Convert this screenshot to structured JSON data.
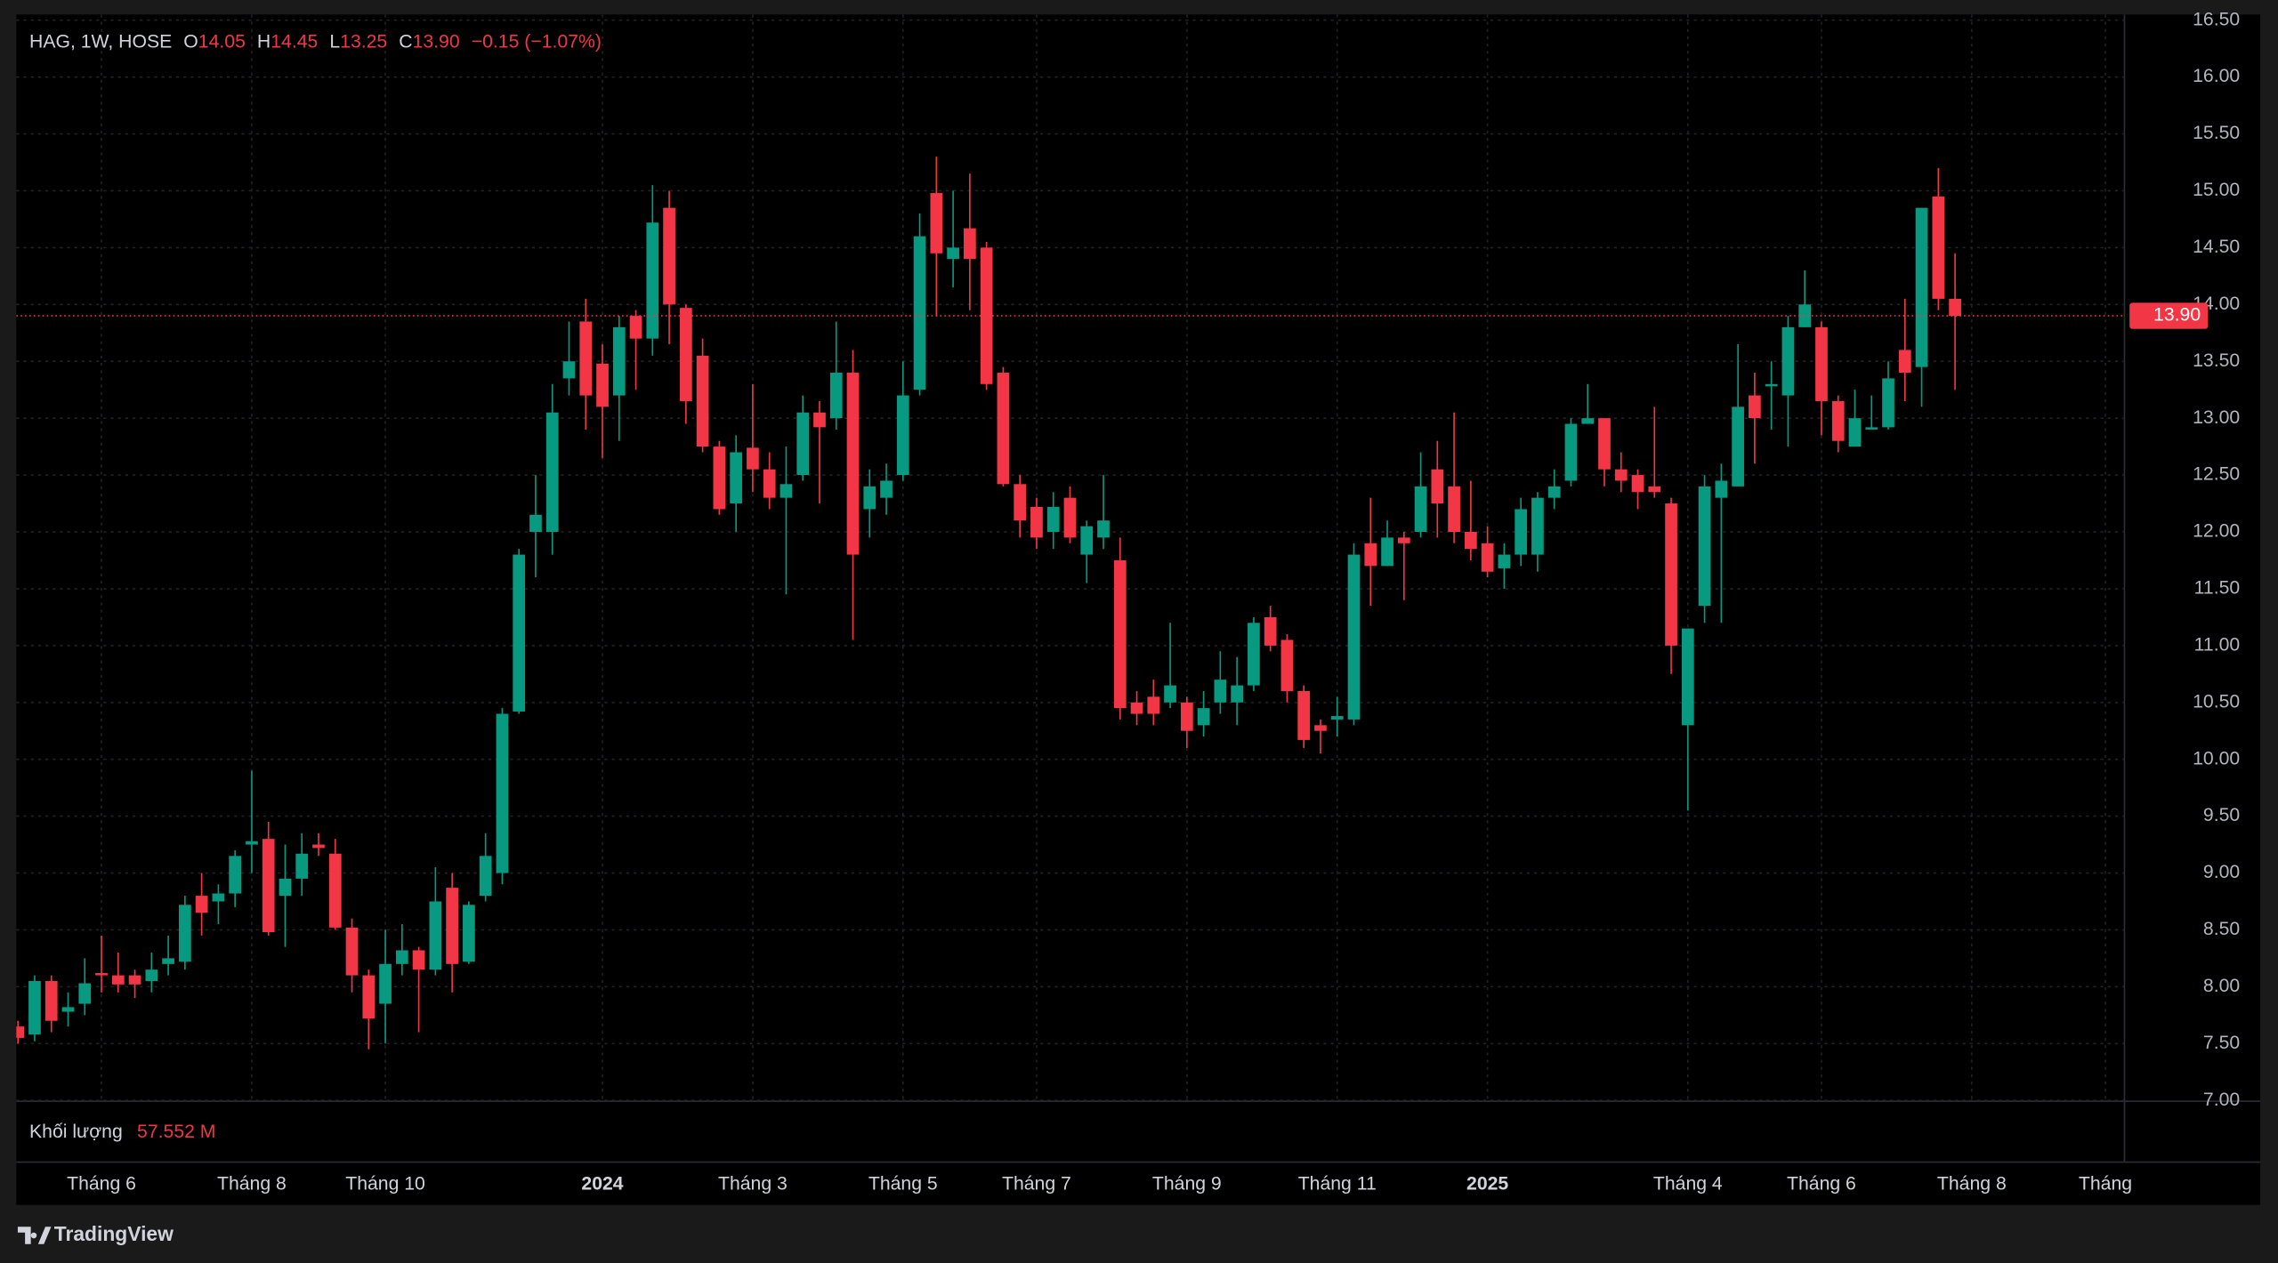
{
  "header": {
    "symbol": "HAG, 1W, HOSE",
    "open_label": "O",
    "open": "14.05",
    "high_label": "H",
    "high": "14.45",
    "low_label": "L",
    "low": "13.25",
    "close_label": "C",
    "close": "13.90",
    "change": "−0.15 (−1.07%)"
  },
  "volume_pane": {
    "label": "Khối lượng",
    "value": "57.552 M"
  },
  "brand": "TradingView",
  "chart_data": {
    "type": "candlestick",
    "up_color": "#089981",
    "down_color": "#f23645",
    "grid": true,
    "xlim": [
      -0.1,
      126.1
    ],
    "xticks": [
      {
        "value": 5,
        "label": "Tháng 6"
      },
      {
        "value": 14,
        "label": "Tháng 8"
      },
      {
        "value": 22,
        "label": "Tháng 10"
      },
      {
        "value": 35,
        "label": "2024"
      },
      {
        "value": 44,
        "label": "Tháng 3"
      },
      {
        "value": 53,
        "label": "Tháng 5"
      },
      {
        "value": 61,
        "label": "Tháng 7"
      },
      {
        "value": 70,
        "label": "Tháng 9"
      },
      {
        "value": 79,
        "label": "Tháng 11"
      },
      {
        "value": 88,
        "label": "2025"
      },
      {
        "value": 100,
        "label": "Tháng 4"
      },
      {
        "value": 108,
        "label": "Tháng 6"
      },
      {
        "value": 117,
        "label": "Tháng 8"
      },
      {
        "value": 125,
        "label": "Tháng"
      }
    ],
    "ylim": [
      7,
      16.55
    ],
    "yticks": [
      {
        "value": 7,
        "label": "7.00"
      },
      {
        "value": 7.5,
        "label": "7.50"
      },
      {
        "value": 8,
        "label": "8.00"
      },
      {
        "value": 8.5,
        "label": "8.50"
      },
      {
        "value": 9,
        "label": "9.00"
      },
      {
        "value": 9.5,
        "label": "9.50"
      },
      {
        "value": 10,
        "label": "10.00"
      },
      {
        "value": 10.5,
        "label": "10.50"
      },
      {
        "value": 11,
        "label": "11.00"
      },
      {
        "value": 11.5,
        "label": "11.50"
      },
      {
        "value": 12,
        "label": "12.00"
      },
      {
        "value": 12.5,
        "label": "12.50"
      },
      {
        "value": 13,
        "label": "13.00"
      },
      {
        "value": 13.5,
        "label": "13.50"
      },
      {
        "value": 14,
        "label": "14.00"
      },
      {
        "value": 14.5,
        "label": "14.50"
      },
      {
        "value": 15,
        "label": "15.00"
      },
      {
        "value": 15.5,
        "label": "15.50"
      },
      {
        "value": 16,
        "label": "16.00"
      },
      {
        "value": 16.5,
        "label": "16.50"
      }
    ],
    "last_price": {
      "value": 13.9,
      "label": "13.90"
    },
    "open": [
      7.65,
      7.58,
      8.05,
      7.78,
      7.85,
      8.12,
      8.1,
      8.1,
      8.05,
      8.2,
      8.22,
      8.8,
      8.75,
      8.82,
      9.25,
      9.3,
      8.8,
      8.95,
      9.25,
      9.17,
      8.52,
      8.1,
      7.85,
      8.2,
      8.32,
      8.15,
      8.87,
      8.22,
      8.8,
      9.0,
      10.42,
      12.0,
      12.0,
      13.35,
      13.85,
      13.48,
      13.2,
      13.9,
      13.7,
      14.85,
      13.97,
      13.55,
      12.75,
      12.25,
      12.74,
      12.55,
      12.3,
      12.5,
      13.05,
      13.0,
      13.4,
      12.2,
      12.3,
      12.5,
      13.25,
      14.98,
      14.4,
      14.67,
      14.5,
      13.4,
      12.42,
      12.22,
      12.0,
      12.3,
      11.8,
      11.95,
      11.75,
      10.5,
      10.55,
      10.5,
      10.5,
      10.3,
      10.5,
      10.5,
      10.65,
      11.25,
      11.05,
      10.6,
      10.3,
      10.35,
      10.35,
      11.9,
      11.7,
      11.95,
      12.0,
      12.55,
      12.4,
      12.0,
      11.9,
      11.68,
      11.8,
      11.8,
      12.3,
      12.45,
      12.95,
      13.0,
      12.55,
      12.5,
      12.4,
      12.25,
      10.3,
      11.35,
      12.3,
      12.4,
      13.2,
      13.28,
      13.2,
      13.8,
      13.8,
      13.15,
      12.75,
      12.9,
      12.92,
      13.6,
      13.45,
      14.95,
      14.05
    ],
    "high": [
      7.7,
      8.1,
      8.1,
      7.95,
      8.25,
      8.45,
      8.3,
      8.15,
      8.3,
      8.45,
      8.8,
      9.0,
      8.9,
      9.2,
      9.9,
      9.45,
      9.25,
      9.35,
      9.35,
      9.3,
      8.6,
      8.15,
      8.5,
      8.55,
      8.35,
      9.05,
      9.0,
      8.75,
      9.35,
      10.45,
      11.85,
      12.5,
      13.3,
      13.85,
      14.05,
      13.65,
      13.9,
      13.95,
      15.05,
      15.0,
      14.0,
      13.7,
      12.8,
      12.85,
      13.3,
      12.7,
      12.75,
      13.2,
      13.15,
      13.85,
      13.6,
      12.55,
      12.6,
      13.5,
      14.8,
      15.3,
      15.0,
      15.15,
      14.55,
      13.45,
      12.5,
      12.3,
      12.35,
      12.4,
      12.1,
      12.5,
      11.95,
      10.6,
      10.7,
      11.2,
      10.55,
      10.6,
      10.95,
      10.9,
      11.25,
      11.35,
      11.1,
      10.65,
      10.35,
      10.55,
      11.9,
      12.3,
      12.1,
      12.0,
      12.7,
      12.8,
      13.05,
      12.45,
      12.05,
      11.9,
      12.3,
      12.35,
      12.55,
      13.0,
      13.3,
      13.0,
      12.7,
      12.55,
      13.1,
      12.3,
      11.15,
      12.5,
      12.6,
      13.65,
      13.4,
      13.5,
      13.9,
      14.3,
      13.85,
      13.2,
      13.25,
      13.2,
      13.5,
      14.05,
      14.85,
      15.2,
      14.45
    ],
    "low": [
      7.5,
      7.52,
      7.6,
      7.65,
      7.75,
      7.95,
      7.95,
      7.9,
      7.95,
      8.1,
      8.15,
      8.45,
      8.55,
      8.7,
      9.0,
      8.45,
      8.35,
      8.8,
      9.15,
      8.5,
      7.95,
      7.45,
      7.5,
      8.1,
      7.6,
      8.1,
      7.95,
      8.2,
      8.75,
      8.9,
      10.4,
      11.6,
      11.8,
      13.2,
      12.9,
      12.65,
      12.8,
      13.25,
      13.55,
      13.65,
      12.95,
      12.7,
      12.15,
      12.0,
      12.35,
      12.2,
      11.45,
      12.45,
      12.25,
      12.9,
      11.05,
      11.95,
      12.15,
      12.45,
      13.2,
      13.9,
      14.15,
      13.95,
      13.25,
      12.4,
      11.95,
      11.85,
      11.85,
      11.9,
      11.55,
      11.85,
      10.35,
      10.3,
      10.3,
      10.45,
      10.1,
      10.2,
      10.4,
      10.3,
      10.6,
      10.95,
      10.5,
      10.1,
      10.05,
      10.2,
      10.3,
      11.35,
      11.7,
      11.4,
      11.95,
      11.95,
      11.9,
      11.75,
      11.6,
      11.5,
      11.7,
      11.65,
      12.2,
      12.4,
      12.95,
      12.4,
      12.35,
      12.2,
      12.3,
      10.75,
      9.55,
      11.2,
      11.2,
      12.4,
      12.6,
      12.9,
      12.75,
      13.8,
      12.85,
      12.7,
      12.75,
      12.9,
      12.9,
      13.15,
      13.1,
      13.95,
      13.25
    ],
    "close": [
      7.55,
      8.05,
      7.7,
      7.82,
      8.03,
      8.1,
      8.02,
      8.02,
      8.15,
      8.25,
      8.72,
      8.65,
      8.82,
      9.15,
      9.28,
      8.48,
      8.95,
      9.17,
      9.22,
      8.52,
      8.1,
      7.72,
      8.2,
      8.32,
      8.15,
      8.75,
      8.2,
      8.72,
      9.15,
      10.4,
      11.8,
      12.15,
      13.05,
      13.5,
      13.2,
      13.1,
      13.8,
      13.7,
      14.72,
      14.0,
      13.15,
      12.75,
      12.2,
      12.7,
      12.55,
      12.3,
      12.42,
      13.05,
      12.92,
      13.4,
      11.8,
      12.4,
      12.45,
      13.2,
      14.6,
      14.45,
      14.5,
      14.4,
      13.3,
      12.42,
      12.1,
      11.95,
      12.22,
      11.95,
      12.05,
      12.1,
      10.45,
      10.4,
      10.4,
      10.65,
      10.25,
      10.45,
      10.7,
      10.65,
      11.2,
      11.0,
      10.6,
      10.17,
      10.25,
      10.38,
      11.8,
      11.7,
      11.95,
      11.9,
      12.4,
      12.25,
      12.0,
      11.85,
      11.65,
      11.8,
      12.2,
      12.3,
      12.4,
      12.95,
      13.0,
      12.55,
      12.45,
      12.35,
      12.35,
      11.0,
      11.15,
      12.4,
      12.45,
      13.1,
      13.0,
      13.3,
      13.8,
      14.0,
      13.15,
      12.8,
      13.0,
      12.92,
      13.35,
      13.4,
      14.85,
      14.05,
      13.9
    ]
  }
}
